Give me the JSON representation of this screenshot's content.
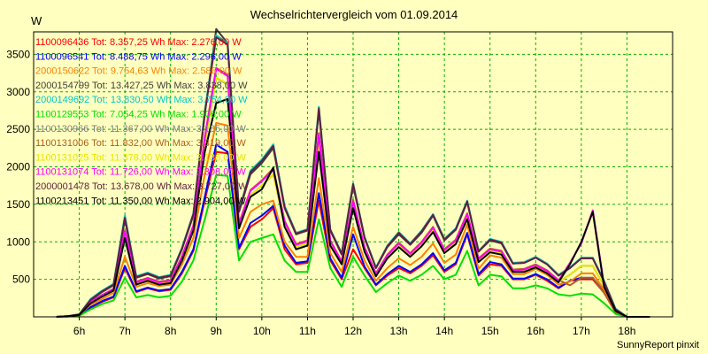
{
  "chart_data": {
    "type": "line",
    "title": "Wechselrichtervergleich vom 01.09.2014",
    "ylabel": "W",
    "ylim": [
      0,
      3800
    ],
    "xlim": [
      5.0,
      19.0
    ],
    "yticks": [
      500,
      1000,
      1500,
      2000,
      2500,
      3000,
      3500
    ],
    "xticks": [
      {
        "v": 6,
        "label": "6h"
      },
      {
        "v": 7,
        "label": "7h"
      },
      {
        "v": 8,
        "label": "8h"
      },
      {
        "v": 9,
        "label": "9h"
      },
      {
        "v": 10,
        "label": "10h"
      },
      {
        "v": 11,
        "label": "11h"
      },
      {
        "v": 12,
        "label": "12h"
      },
      {
        "v": 13,
        "label": "13h"
      },
      {
        "v": 14,
        "label": "14h"
      },
      {
        "v": 15,
        "label": "15h"
      },
      {
        "v": 16,
        "label": "16h"
      },
      {
        "v": 17,
        "label": "17h"
      },
      {
        "v": 18,
        "label": "18h"
      }
    ],
    "grid": true,
    "x": [
      5.5,
      5.75,
      6.0,
      6.25,
      6.5,
      6.75,
      7.0,
      7.25,
      7.5,
      7.75,
      8.0,
      8.25,
      8.5,
      8.75,
      9.0,
      9.25,
      9.5,
      9.75,
      10.0,
      10.25,
      10.5,
      10.75,
      11.0,
      11.25,
      11.5,
      11.75,
      12.0,
      12.25,
      12.5,
      12.75,
      13.0,
      13.25,
      13.5,
      13.75,
      14.0,
      14.25,
      14.5,
      14.75,
      15.0,
      15.25,
      15.5,
      15.75,
      16.0,
      16.25,
      16.5,
      16.75,
      17.0,
      17.25,
      17.5,
      17.75,
      18.0,
      18.25,
      18.5
    ],
    "series": [
      {
        "name": "1100096436",
        "legend": "1100096436 Tot: 8.357,25 Wh Max: 2.276,00 W",
        "color": "#ff0000",
        "values": [
          0,
          5,
          20,
          120,
          200,
          260,
          650,
          330,
          380,
          340,
          360,
          580,
          880,
          1550,
          2200,
          2180,
          900,
          1200,
          1300,
          1450,
          900,
          700,
          720,
          1550,
          750,
          500,
          900,
          650,
          420,
          550,
          650,
          580,
          680,
          820,
          600,
          700,
          1100,
          550,
          700,
          680,
          500,
          500,
          560,
          480,
          380,
          480,
          500,
          500,
          320,
          60,
          0,
          0,
          0
        ]
      },
      {
        "name": "1100096541",
        "legend": "1100096541 Tot: 8.488,75 Wh Max: 2.296,00 W",
        "color": "#0000ff",
        "values": [
          0,
          5,
          20,
          130,
          210,
          270,
          680,
          340,
          390,
          350,
          370,
          600,
          900,
          1600,
          2296,
          2200,
          920,
          1250,
          1350,
          1480,
          950,
          720,
          740,
          1650,
          780,
          520,
          1100,
          670,
          430,
          570,
          680,
          600,
          700,
          850,
          620,
          720,
          1120,
          570,
          730,
          700,
          510,
          510,
          570,
          500,
          390,
          480,
          520,
          520,
          330,
          70,
          0,
          0,
          0
        ]
      },
      {
        "name": "2000150622",
        "legend": "2000150622 Tot: 9.754,63 Wh Max: 2.586,00 W",
        "color": "#ff8000",
        "values": [
          0,
          5,
          25,
          160,
          240,
          320,
          800,
          400,
          450,
          410,
          430,
          700,
          1050,
          1900,
          2586,
          2550,
          1050,
          1400,
          1500,
          1550,
          1000,
          800,
          800,
          1850,
          850,
          600,
          1200,
          750,
          480,
          650,
          780,
          690,
          800,
          980,
          720,
          830,
          1230,
          640,
          820,
          790,
          570,
          570,
          640,
          560,
          430,
          470,
          580,
          580,
          360,
          80,
          0,
          0,
          0
        ]
      },
      {
        "name": "2000154799",
        "legend": "2000154799 Tot: 13.427,25 Wh Max: 3.838,00 W",
        "color": "#404040",
        "values": [
          0,
          10,
          30,
          220,
          330,
          420,
          1300,
          520,
          570,
          510,
          540,
          900,
          1350,
          2700,
          3838,
          3650,
          1400,
          1900,
          2050,
          2250,
          1450,
          1100,
          1150,
          2750,
          1150,
          830,
          1750,
          1050,
          650,
          930,
          1100,
          960,
          1120,
          1350,
          1020,
          1160,
          1530,
          870,
          1020,
          980,
          710,
          720,
          790,
          700,
          550,
          650,
          780,
          780,
          470,
          100,
          0,
          0,
          0
        ]
      },
      {
        "name": "2000149692",
        "legend": "2000149692 Tot: 13.830,50 Wh Max: 3.754,00 W",
        "color": "#00c8c8",
        "values": [
          0,
          10,
          35,
          240,
          350,
          440,
          1350,
          540,
          590,
          530,
          560,
          920,
          1380,
          2750,
          3754,
          3650,
          1420,
          1950,
          2100,
          2300,
          1480,
          1120,
          1170,
          2800,
          1170,
          850,
          1780,
          1070,
          660,
          950,
          1130,
          980,
          1150,
          1370,
          1040,
          1180,
          1550,
          880,
          1040,
          1000,
          720,
          730,
          800,
          710,
          560,
          660,
          790,
          790,
          480,
          110,
          0,
          0,
          0
        ]
      },
      {
        "name": "1100129553",
        "legend": "1100129553 Tot: 7.054,25 Wh Max: 1.906,00 W",
        "color": "#00e000",
        "values": [
          0,
          5,
          15,
          100,
          170,
          220,
          520,
          260,
          290,
          260,
          280,
          470,
          750,
          1300,
          1890,
          1880,
          750,
          1000,
          1050,
          1100,
          750,
          600,
          600,
          1300,
          650,
          400,
          800,
          550,
          330,
          450,
          550,
          480,
          560,
          680,
          500,
          560,
          880,
          420,
          560,
          540,
          380,
          380,
          420,
          380,
          300,
          280,
          310,
          300,
          180,
          40,
          0,
          0,
          0
        ]
      },
      {
        "name": "1100130966",
        "legend": "1100130966 Tot: 11.367,00 Wh Max: 3.185,00 W",
        "color": "#808080",
        "values": [
          0,
          8,
          25,
          190,
          280,
          360,
          1100,
          450,
          500,
          450,
          470,
          780,
          1170,
          2300,
          3185,
          3100,
          1200,
          1620,
          1750,
          1900,
          1230,
          930,
          980,
          2350,
          980,
          710,
          1500,
          900,
          560,
          800,
          950,
          820,
          960,
          1160,
          870,
          990,
          1330,
          750,
          880,
          850,
          610,
          620,
          680,
          600,
          470,
          560,
          680,
          680,
          410,
          90,
          0,
          0,
          0
        ]
      },
      {
        "name": "1100131006",
        "legend": "1100131006 Tot: 11.832,00 Wh Max: 3.319,00 W",
        "color": "#b06020",
        "values": [
          0,
          8,
          28,
          200,
          290,
          375,
          1150,
          470,
          520,
          470,
          490,
          810,
          1220,
          2400,
          3319,
          3230,
          1250,
          1690,
          1820,
          1980,
          1280,
          970,
          1020,
          2450,
          1020,
          740,
          1560,
          930,
          580,
          830,
          990,
          850,
          1000,
          1200,
          900,
          1030,
          1380,
          780,
          910,
          880,
          630,
          640,
          700,
          620,
          490,
          420,
          520,
          520,
          320,
          70,
          0,
          0,
          0
        ]
      },
      {
        "name": "1100131025",
        "legend": "1100131025 Tot: 11.378,00 Wh Max: 3.186,00 W",
        "color": "#e6e600",
        "values": [
          0,
          8,
          25,
          190,
          280,
          360,
          1100,
          450,
          500,
          450,
          470,
          780,
          1170,
          2310,
          3186,
          3110,
          1200,
          1620,
          1750,
          1900,
          1230,
          930,
          980,
          2350,
          980,
          710,
          1500,
          900,
          560,
          800,
          950,
          820,
          960,
          1160,
          870,
          990,
          1330,
          750,
          880,
          850,
          610,
          620,
          680,
          600,
          470,
          560,
          680,
          680,
          410,
          90,
          0,
          0,
          0
        ]
      },
      {
        "name": "1100131074",
        "legend": "1100131074 Tot: 11.726,00 Wh Max: 3.308,00 W",
        "color": "#ff00ff",
        "values": [
          0,
          8,
          28,
          200,
          290,
          370,
          1140,
          460,
          510,
          460,
          480,
          800,
          1210,
          2380,
          3308,
          3210,
          1240,
          1680,
          1810,
          1960,
          1270,
          960,
          1010,
          2430,
          1010,
          730,
          1540,
          920,
          570,
          820,
          980,
          840,
          990,
          1190,
          890,
          1020,
          1370,
          770,
          900,
          870,
          620,
          630,
          690,
          610,
          480,
          720,
          980,
          1420,
          420,
          90,
          0,
          0,
          0
        ]
      },
      {
        "name": "2000001478",
        "legend": "2000001478 Tot: 13.678,00 Wh Max: 3.727,00 W",
        "color": "#602040",
        "values": [
          0,
          10,
          33,
          230,
          340,
          430,
          1320,
          530,
          580,
          520,
          550,
          910,
          1370,
          2720,
          3727,
          3630,
          1410,
          1930,
          2080,
          2280,
          1460,
          1110,
          1160,
          2780,
          1160,
          840,
          1770,
          1060,
          650,
          940,
          1120,
          970,
          1140,
          1360,
          1030,
          1170,
          1540,
          870,
          1030,
          990,
          710,
          720,
          790,
          700,
          550,
          650,
          780,
          780,
          470,
          100,
          0,
          0,
          0
        ]
      },
      {
        "name": "1100213451",
        "legend": "1100213451 Tot: 11.350,00 Wh Max: 2.904,00 W",
        "color": "#000000",
        "values": [
          0,
          8,
          25,
          180,
          270,
          350,
          1050,
          430,
          480,
          430,
          450,
          750,
          1150,
          2200,
          2850,
          2904,
          1180,
          1600,
          1700,
          1990,
          1200,
          900,
          950,
          2200,
          950,
          700,
          1450,
          870,
          540,
          780,
          930,
          800,
          940,
          1130,
          850,
          970,
          1300,
          730,
          860,
          830,
          600,
          600,
          660,
          580,
          460,
          700,
          1000,
          1400,
          400,
          80,
          0,
          0,
          0
        ]
      }
    ]
  },
  "footer": {
    "credit": "SunnyReport pinxit"
  }
}
